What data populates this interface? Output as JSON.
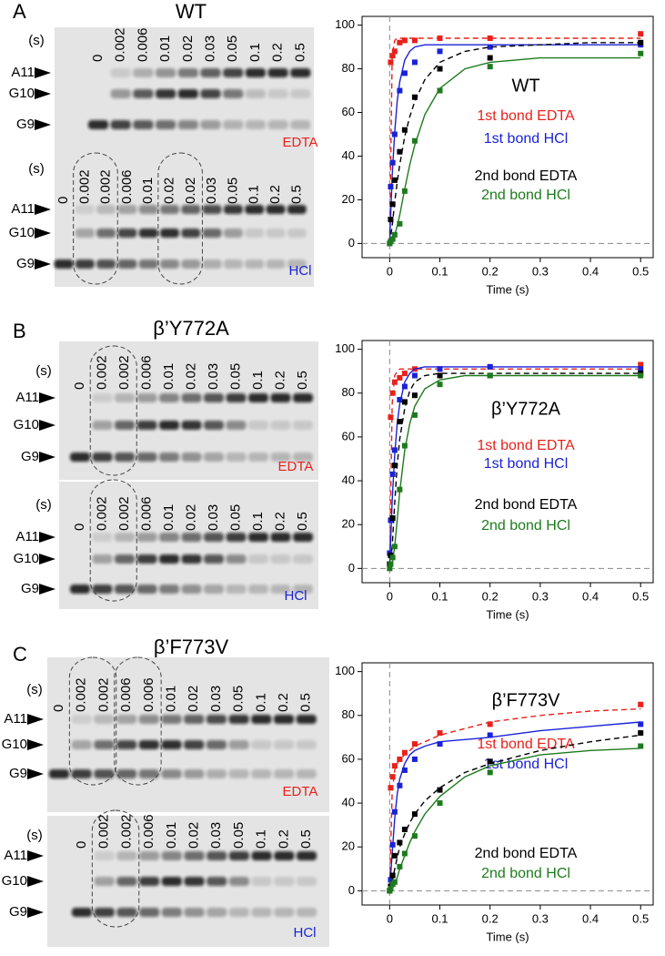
{
  "panels": [
    {
      "letter": "A",
      "title": "WT",
      "band_labels": [
        "A11",
        "G10",
        "G9"
      ],
      "gels": [
        {
          "unit": "(s)",
          "buffer": "EDTA",
          "buffer_color": "#e8211b",
          "lanes": [
            "0",
            "0.002",
            "0.006",
            "0.01",
            "0.02",
            "0.03",
            "0.05",
            "0.1",
            "0.2",
            "0.5"
          ]
        },
        {
          "unit": "(s)",
          "buffer": "HCl",
          "buffer_color": "#1a22d8",
          "lanes": [
            "0",
            "0.002",
            "0.002",
            "0.006",
            "0.01",
            "0.02",
            "0.02",
            "0.03",
            "0.05",
            "0.1",
            "0.2",
            "0.5"
          ]
        }
      ]
    },
    {
      "letter": "B",
      "title": "β’Y772A",
      "band_labels": [
        "A11",
        "G10",
        "G9"
      ],
      "gels": [
        {
          "unit": "(s)",
          "buffer": "EDTA",
          "buffer_color": "#e8211b",
          "lanes": [
            "0",
            "0.002",
            "0.002",
            "0.006",
            "0.01",
            "0.02",
            "0.03",
            "0.05",
            "0.1",
            "0.2",
            "0.5"
          ]
        },
        {
          "unit": "(s)",
          "buffer": "HCl",
          "buffer_color": "#1a22d8",
          "lanes": [
            "0",
            "0.002",
            "0.002",
            "0.006",
            "0.01",
            "0.02",
            "0.03",
            "0.05",
            "0.1",
            "0.2",
            "0.5"
          ]
        }
      ]
    },
    {
      "letter": "C",
      "title": "β’F773V",
      "band_labels": [
        "A11",
        "G10",
        "G9"
      ],
      "gels": [
        {
          "unit": "(s)",
          "buffer": "EDTA",
          "buffer_color": "#e8211b",
          "lanes": [
            "0",
            "0.002",
            "0.002",
            "0.006",
            "0.006",
            "0.01",
            "0.02",
            "0.03",
            "0.05",
            "0.1",
            "0.2",
            "0.5"
          ]
        },
        {
          "unit": "(s)",
          "buffer": "HCl",
          "buffer_color": "#1a22d8",
          "lanes": [
            "0",
            "0.002",
            "0.002",
            "0.006",
            "0.01",
            "0.02",
            "0.03",
            "0.05",
            "0.1",
            "0.2",
            "0.5"
          ]
        }
      ]
    }
  ],
  "chart_data": [
    {
      "type": "scatter",
      "title": "WT",
      "xlabel": "Time (s)",
      "xlim": [
        -0.055,
        0.525
      ],
      "ylim": [
        -6.5,
        104
      ],
      "xticks": [
        0,
        0.1,
        0.2,
        0.3,
        0.4,
        0.5
      ],
      "yticks": [
        0,
        20,
        40,
        60,
        80,
        100
      ],
      "reference_lines": true,
      "series": [
        {
          "name": "1st bond EDTA",
          "color": "#e8211b",
          "line_style": "dashed",
          "x": [
            0.002,
            0.006,
            0.01,
            0.02,
            0.03,
            0.05,
            0.1,
            0.2,
            0.5
          ],
          "values": [
            83,
            86,
            88,
            92,
            93,
            93,
            94,
            94,
            96
          ],
          "fit_x": [
            0,
            0.005,
            0.01,
            0.015,
            0.02,
            0.03,
            0.04,
            0.05,
            0.07,
            0.1,
            0.15,
            0.2,
            0.3,
            0.4,
            0.5
          ],
          "fit_values": [
            0,
            86,
            93,
            94,
            94,
            94,
            94,
            94,
            94,
            94,
            94,
            94,
            94,
            94,
            94
          ]
        },
        {
          "name": "1st bond HCl",
          "color": "#1a22d8",
          "line_style": "solid",
          "x": [
            0,
            0.002,
            0.006,
            0.01,
            0.02,
            0.03,
            0.05,
            0.1,
            0.2,
            0.5
          ],
          "values": [
            0,
            26,
            37,
            50,
            70,
            78,
            83,
            88,
            90,
            91
          ],
          "fit_x": [
            0,
            0.005,
            0.01,
            0.015,
            0.02,
            0.03,
            0.04,
            0.05,
            0.07,
            0.1,
            0.15,
            0.2,
            0.3,
            0.4,
            0.5
          ],
          "fit_values": [
            0,
            31,
            51,
            65,
            74,
            84,
            88,
            90,
            91,
            91,
            91,
            91,
            91,
            91,
            91
          ]
        },
        {
          "name": "2nd bond EDTA",
          "color": "#000000",
          "line_style": "dashed",
          "x": [
            0.002,
            0.006,
            0.01,
            0.02,
            0.03,
            0.05,
            0.1,
            0.2,
            0.5
          ],
          "values": [
            11,
            18,
            29,
            42,
            52,
            67,
            80,
            85,
            92
          ],
          "fit_x": [
            0,
            0.005,
            0.01,
            0.015,
            0.02,
            0.03,
            0.04,
            0.05,
            0.07,
            0.1,
            0.15,
            0.2,
            0.3,
            0.4,
            0.5
          ],
          "fit_values": [
            0,
            8,
            19,
            28,
            36,
            49,
            58,
            65,
            75,
            83,
            88,
            90,
            91,
            92,
            92
          ]
        },
        {
          "name": "2nd bond HCl",
          "color": "#1e7a1e",
          "line_style": "solid",
          "x": [
            0,
            0.002,
            0.006,
            0.01,
            0.02,
            0.03,
            0.05,
            0.1,
            0.2,
            0.5
          ],
          "values": [
            0,
            1,
            2,
            4,
            9,
            24,
            47,
            70,
            81,
            87
          ],
          "fit_x": [
            0,
            0.005,
            0.01,
            0.015,
            0.02,
            0.03,
            0.04,
            0.05,
            0.07,
            0.1,
            0.15,
            0.2,
            0.3,
            0.4,
            0.5
          ],
          "fit_values": [
            0,
            1,
            4,
            8,
            13,
            25,
            36,
            45,
            59,
            71,
            80,
            83,
            85,
            85,
            85
          ]
        }
      ]
    },
    {
      "type": "scatter",
      "title": "β’Y772A",
      "xlabel": "Time (s)",
      "xlim": [
        -0.055,
        0.525
      ],
      "ylim": [
        -6.5,
        104
      ],
      "xticks": [
        0,
        0.1,
        0.2,
        0.3,
        0.4,
        0.5
      ],
      "yticks": [
        0,
        20,
        40,
        60,
        80,
        100
      ],
      "reference_lines": true,
      "series": [
        {
          "name": "1st bond EDTA",
          "color": "#e8211b",
          "line_style": "dashed",
          "x": [
            0.002,
            0.006,
            0.01,
            0.02,
            0.03,
            0.05,
            0.1,
            0.2,
            0.5
          ],
          "values": [
            69,
            80,
            85,
            87,
            89,
            91,
            91,
            92,
            93
          ],
          "fit_x": [
            0,
            0.005,
            0.01,
            0.015,
            0.02,
            0.03,
            0.04,
            0.05,
            0.07,
            0.1,
            0.15,
            0.2,
            0.3,
            0.4,
            0.5
          ],
          "fit_values": [
            0,
            75,
            88,
            90,
            91,
            91,
            91,
            91,
            91,
            91,
            91,
            91,
            91,
            91,
            91
          ]
        },
        {
          "name": "1st bond HCl",
          "color": "#1a22d8",
          "line_style": "solid",
          "x": [
            0,
            0.002,
            0.006,
            0.01,
            0.02,
            0.03,
            0.05,
            0.1,
            0.2,
            0.5
          ],
          "values": [
            7,
            22,
            43,
            54,
            77,
            83,
            88,
            91,
            92,
            91
          ],
          "fit_x": [
            0,
            0.005,
            0.01,
            0.015,
            0.02,
            0.03,
            0.04,
            0.05,
            0.07,
            0.1,
            0.15,
            0.2,
            0.3,
            0.4,
            0.5
          ],
          "fit_values": [
            0,
            31,
            52,
            66,
            75,
            85,
            89,
            91,
            92,
            92,
            92,
            92,
            92,
            92,
            92
          ]
        },
        {
          "name": "2nd bond EDTA",
          "color": "#000000",
          "line_style": "dashed",
          "x": [
            0,
            0.002,
            0.006,
            0.01,
            0.02,
            0.03,
            0.05,
            0.1,
            0.2,
            0.5
          ],
          "values": [
            2,
            6,
            23,
            47,
            67,
            76,
            79,
            88,
            88,
            89
          ],
          "fit_x": [
            0,
            0.005,
            0.01,
            0.015,
            0.02,
            0.03,
            0.04,
            0.05,
            0.07,
            0.1,
            0.15,
            0.2,
            0.3,
            0.4,
            0.5
          ],
          "fit_values": [
            0,
            10,
            30,
            47,
            59,
            73,
            81,
            85,
            88,
            89,
            89,
            89,
            89,
            89,
            89
          ]
        },
        {
          "name": "2nd bond HCl",
          "color": "#1e7a1e",
          "line_style": "solid",
          "x": [
            0,
            0.002,
            0.006,
            0.01,
            0.02,
            0.03,
            0.05,
            0.1,
            0.2,
            0.5
          ],
          "values": [
            0,
            2,
            5,
            10,
            36,
            56,
            70,
            84,
            88,
            88
          ],
          "fit_x": [
            0,
            0.005,
            0.01,
            0.015,
            0.02,
            0.03,
            0.04,
            0.05,
            0.07,
            0.1,
            0.15,
            0.2,
            0.3,
            0.4,
            0.5
          ],
          "fit_values": [
            0,
            2,
            10,
            22,
            35,
            54,
            66,
            74,
            82,
            86,
            88,
            88,
            88,
            88,
            88
          ]
        }
      ]
    },
    {
      "type": "scatter",
      "title": "β’F773V",
      "xlabel": "Time (s)",
      "xlim": [
        -0.055,
        0.525
      ],
      "ylim": [
        -6.5,
        104
      ],
      "xticks": [
        0,
        0.1,
        0.2,
        0.3,
        0.4,
        0.5
      ],
      "yticks": [
        0,
        20,
        40,
        60,
        80,
        100
      ],
      "reference_lines": true,
      "series": [
        {
          "name": "1st bond EDTA",
          "color": "#e8211b",
          "line_style": "dashed",
          "x": [
            0.002,
            0.006,
            0.01,
            0.02,
            0.03,
            0.05,
            0.1,
            0.2,
            0.5
          ],
          "values": [
            47,
            52,
            57,
            60,
            63,
            67,
            72,
            76,
            85
          ],
          "fit_x": [
            0,
            0.005,
            0.01,
            0.015,
            0.02,
            0.03,
            0.04,
            0.05,
            0.07,
            0.1,
            0.15,
            0.2,
            0.3,
            0.4,
            0.5
          ],
          "fit_values": [
            0,
            45,
            55,
            58,
            60,
            62,
            64,
            66,
            68,
            71,
            74,
            77,
            80,
            82,
            83
          ]
        },
        {
          "name": "1st bond HCl",
          "color": "#1a22d8",
          "line_style": "solid",
          "x": [
            0.002,
            0.006,
            0.01,
            0.02,
            0.03,
            0.05,
            0.1,
            0.2,
            0.5
          ],
          "values": [
            5,
            21,
            36,
            48,
            55,
            60,
            67,
            71,
            76
          ],
          "fit_x": [
            0,
            0.005,
            0.01,
            0.015,
            0.02,
            0.03,
            0.04,
            0.05,
            0.07,
            0.1,
            0.15,
            0.2,
            0.3,
            0.4,
            0.5
          ],
          "fit_values": [
            0,
            17,
            33,
            44,
            51,
            58,
            62,
            64,
            66,
            68,
            69,
            70,
            73,
            75,
            77
          ]
        },
        {
          "name": "2nd bond EDTA",
          "color": "#000000",
          "line_style": "dashed",
          "x": [
            0,
            0.002,
            0.006,
            0.01,
            0.02,
            0.03,
            0.05,
            0.1,
            0.2,
            0.5
          ],
          "values": [
            0,
            2,
            7,
            16,
            22,
            28,
            35,
            46,
            59,
            72
          ],
          "fit_x": [
            0,
            0.005,
            0.01,
            0.015,
            0.02,
            0.03,
            0.04,
            0.05,
            0.07,
            0.1,
            0.15,
            0.2,
            0.3,
            0.4,
            0.5
          ],
          "fit_values": [
            0,
            4,
            10,
            15,
            20,
            26,
            31,
            35,
            41,
            47,
            54,
            58,
            64,
            68,
            71
          ]
        },
        {
          "name": "2nd bond HCl",
          "color": "#1e7a1e",
          "line_style": "solid",
          "x": [
            0,
            0.002,
            0.006,
            0.01,
            0.02,
            0.03,
            0.05,
            0.1,
            0.2,
            0.5
          ],
          "values": [
            0,
            1,
            3,
            4,
            11,
            17,
            25,
            40,
            54,
            66
          ],
          "fit_x": [
            0,
            0.005,
            0.01,
            0.015,
            0.02,
            0.03,
            0.04,
            0.05,
            0.07,
            0.1,
            0.15,
            0.2,
            0.3,
            0.4,
            0.5
          ],
          "fit_values": [
            0,
            1,
            3,
            6,
            10,
            16,
            22,
            27,
            35,
            43,
            52,
            57,
            62,
            64,
            65
          ]
        }
      ]
    }
  ]
}
